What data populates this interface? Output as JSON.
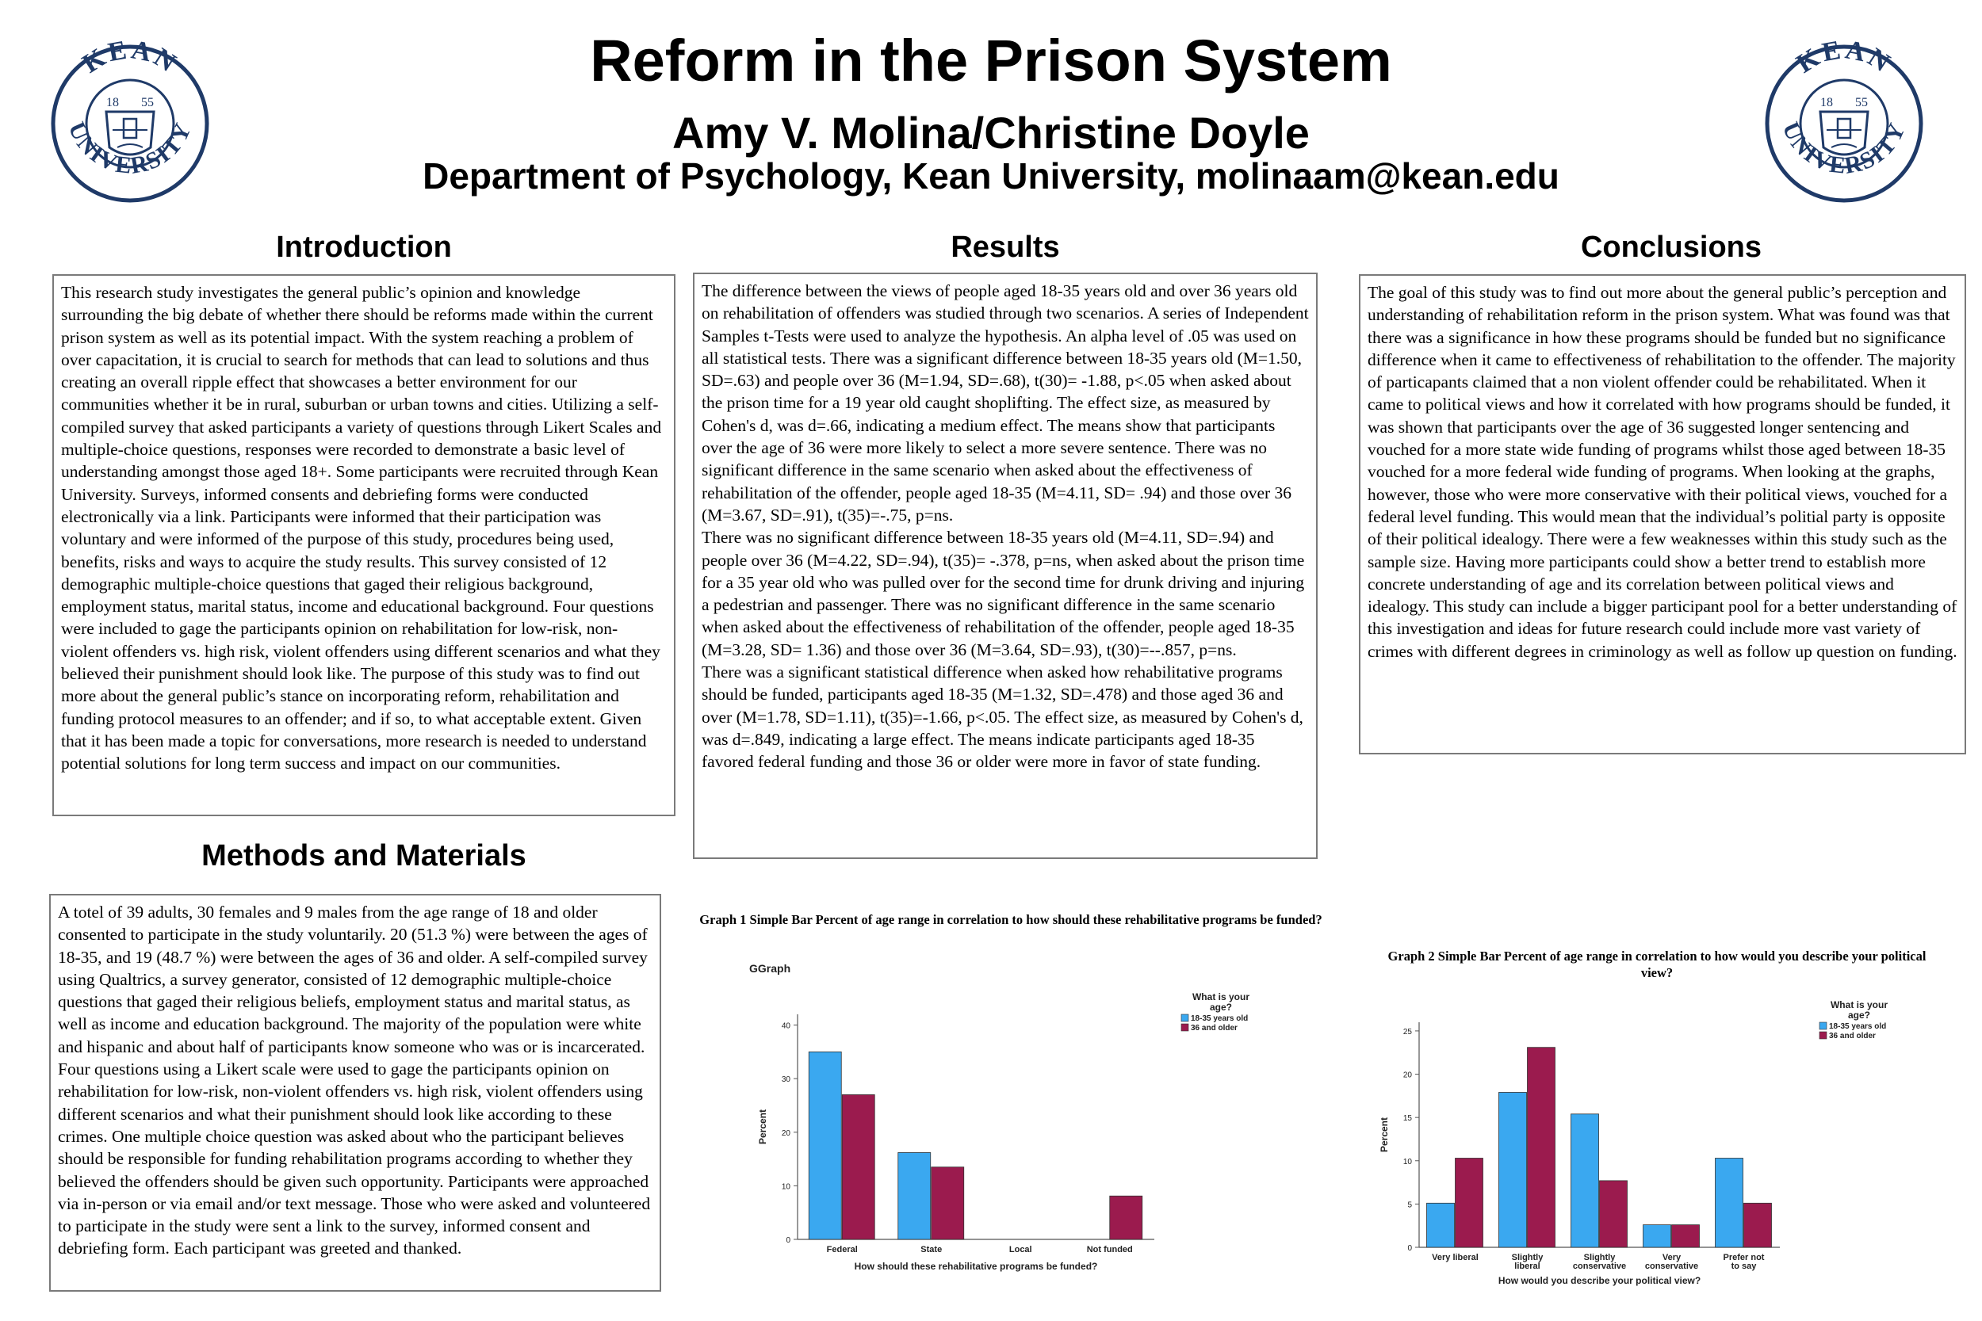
{
  "header": {
    "title": "Reform in the Prison System",
    "authors": "Amy V. Molina/Christine Doyle",
    "department": "Department of Psychology, Kean University, molinaam@kean.edu"
  },
  "logo": {
    "top_text": "KEAN",
    "bottom_text": "UNIVERSITY",
    "year_left": "18",
    "year_right": "55",
    "color": "#1f3a68"
  },
  "sections": {
    "introduction": {
      "heading": "Introduction",
      "body": "This research study investigates the general public’s opinion and knowledge surrounding the big debate of whether there should be reforms made within the current prison system as well as its potential impact. With the system reaching a problem of over capacitation, it is crucial to search for methods that can lead to solutions and thus creating an overall ripple effect that showcases a better environment for our communities whether it be in rural, suburban or urban towns and cities. Utilizing a self-compiled survey that asked participants a variety of questions through Likert Scales and multiple-choice questions, responses were recorded to demonstrate a basic level of understanding amongst those aged 18+. Some participants were recruited through Kean University. Surveys, informed consents and debriefing forms were conducted electronically via a link. Participants were informed that their participation was voluntary and were informed of the purpose of this study, procedures being used, benefits, risks and ways to acquire the study results. This survey consisted of 12 demographic multiple-choice questions that gaged their religious background, employment status, marital status, income and educational background. Four questions were included to gage the participants opinion on rehabilitation for low-risk, non- violent offenders vs. high risk, violent offenders using different scenarios and what they believed their punishment should look like. The purpose of this study was to find out more about the general public’s stance on incorporating reform, rehabilitation and funding protocol measures to an offender; and if so, to what acceptable extent. Given that it has been made a topic for conversations, more research is needed to understand potential solutions for long term success and impact on our communities."
    },
    "methods": {
      "heading": "Methods and Materials",
      "body": "A totel of 39 adults, 30 females and 9 males from the age range of 18 and older consented to participate in the study voluntarily. 20 (51.3 %) were between the ages of 18-35, and 19 (48.7 %) were between the ages of 36 and older. A self-compiled survey using Qualtrics, a survey generator, consisted of 12 demographic multiple-choice questions that gaged their religious beliefs, employment status and marital status, as well as income and education background. The majority of the population were white and hispanic and about half of participants know someone who was or is incarcerated. Four questions using a Likert scale were used to gage the participants opinion on rehabilitation for low-risk, non-violent offenders vs. high risk, violent offenders using different scenarios and what their punishment should look like according to these crimes. One multiple choice question was asked about who the participant believes should be responsible for funding rehabilitation programs according to whether they believed the offenders should be given such opportunity. Participants were approached via in-person or via email and/or text message. Those who were asked and volunteered to participate in the study were sent a link to the survey, informed consent and debriefing form. Each participant was greeted and thanked."
    },
    "results": {
      "heading": "Results",
      "paragraphs": [
        "The difference between the views of people aged 18-35 years old and over 36 years old on rehabilitation of offenders was studied through two scenarios. A series of Independent Samples t-Tests were used to analyze the hypothesis. An alpha level of .05 was used on all statistical tests. There was a significant difference between 18-35 years old (M=1.50, SD=.63) and people over 36 (M=1.94, SD=.68), t(30)= -1.88, p<.05 when asked about the prison time for a 19 year old caught shoplifting. The effect size, as measured by Cohen's d, was d=.66, indicating a medium effect. The means show that participants over the age of 36 were more likely to select a more severe sentence. There was no significant difference in the same scenario when asked about the effectiveness of rehabilitation of the offender, people aged 18-35 (M=4.11, SD= .94) and those over 36 (M=3.67, SD=.91), t(35)=-.75, p=ns.",
        "There was no significant difference between 18-35 years old (M=4.11, SD=.94) and people over 36 (M=4.22, SD=.94), t(35)= -.378, p=ns, when asked about the prison time for a 35 year old who was pulled over for the second time for drunk driving and injuring a pedestrian and passenger. There was no significant difference in the same scenario when asked about the effectiveness of rehabilitation of the offender, people aged 18-35 (M=3.28, SD= 1.36) and those over 36 (M=3.64, SD=.93), t(30)=--.857, p=ns.",
        "There was a significant statistical difference when asked how rehabilitative programs should be funded, participants aged 18-35 (M=1.32, SD=.478) and those aged 36 and over (M=1.78, SD=1.11), t(35)=-1.66, p<.05. The effect size, as measured by Cohen's d, was d=.849, indicating a large effect. The means indicate participants aged 18-35 favored federal funding and those 36 or older were more in favor of state funding."
      ]
    },
    "conclusions": {
      "heading": "Conclusions",
      "body": "The goal of this study was to find out more about the general public’s perception and understanding of rehabilitation reform  in the prison system. What was found was that there was a significance in how these programs should be funded but no significance difference when it came to effectiveness of rehabilitation to the offender. The majority of particapants claimed that a non violent offender could be rehabilitated. When it came to political views and how it correlated with how programs should be funded, it was shown that participants over the age of 36 suggested longer sentencing and vouched for a more state wide funding of programs whilst those aged between 18-35 vouched for a more federal wide funding of programs. When looking at the graphs, however, those who were more conservative with their political views, vouched for a federal level funding. This would mean that the individual’s politial party is opposite of their political idealogy. There were a few weaknesses within this study such as the sample size. Having more participants could show a better trend to establish more concrete understanding of age and its correlation between political views and idealogy. This study can include a bigger participant pool for a better understanding of this investigation and ideas for future research could include more vast variety of crimes with different degrees in criminology as well as follow up question on funding."
    }
  },
  "graphs": {
    "graph1": {
      "title": "Graph 1   Simple Bar Percent of age range in correlation to how should these rehabilitative programs be funded?",
      "badge": "GGraph"
    },
    "graph2": {
      "title": "Graph 2   Simple Bar Percent of age range in correlation to how would you describe your political view?"
    }
  },
  "chart_data": [
    {
      "type": "bar",
      "categories": [
        "Federal",
        "State",
        "Local",
        "Not funded"
      ],
      "series": [
        {
          "name": "18-35 years old",
          "color": "#3aa8f0",
          "values": [
            35,
            16.2,
            0,
            0
          ]
        },
        {
          "name": "36 and older",
          "color": "#9b1b4e",
          "values": [
            27,
            13.5,
            0,
            8.1
          ]
        }
      ],
      "xlabel": "How should these rehabilitative programs be funded?",
      "ylabel": "Percent",
      "ylim": [
        0,
        42
      ],
      "yticks": [
        0,
        10,
        20,
        30,
        40
      ],
      "legend_title": "What is your age?",
      "legend_position": "top-right",
      "grid": false
    },
    {
      "type": "bar",
      "categories": [
        "Very liberal",
        "Slightly liberal",
        "Slightly conservative",
        "Very conservative",
        "Prefer not to say"
      ],
      "series": [
        {
          "name": "18-35 years old",
          "color": "#3aa8f0",
          "values": [
            5.1,
            17.9,
            15.4,
            2.6,
            10.3
          ]
        },
        {
          "name": "36 and older",
          "color": "#9b1b4e",
          "values": [
            10.3,
            23.1,
            7.7,
            2.6,
            5.1
          ]
        }
      ],
      "xlabel": "How would you describe your political view?",
      "ylabel": "Percent",
      "ylim": [
        0,
        26
      ],
      "yticks": [
        0,
        5,
        10,
        15,
        20,
        25
      ],
      "legend_title": "What is your age?",
      "legend_position": "top-right",
      "grid": false
    }
  ]
}
